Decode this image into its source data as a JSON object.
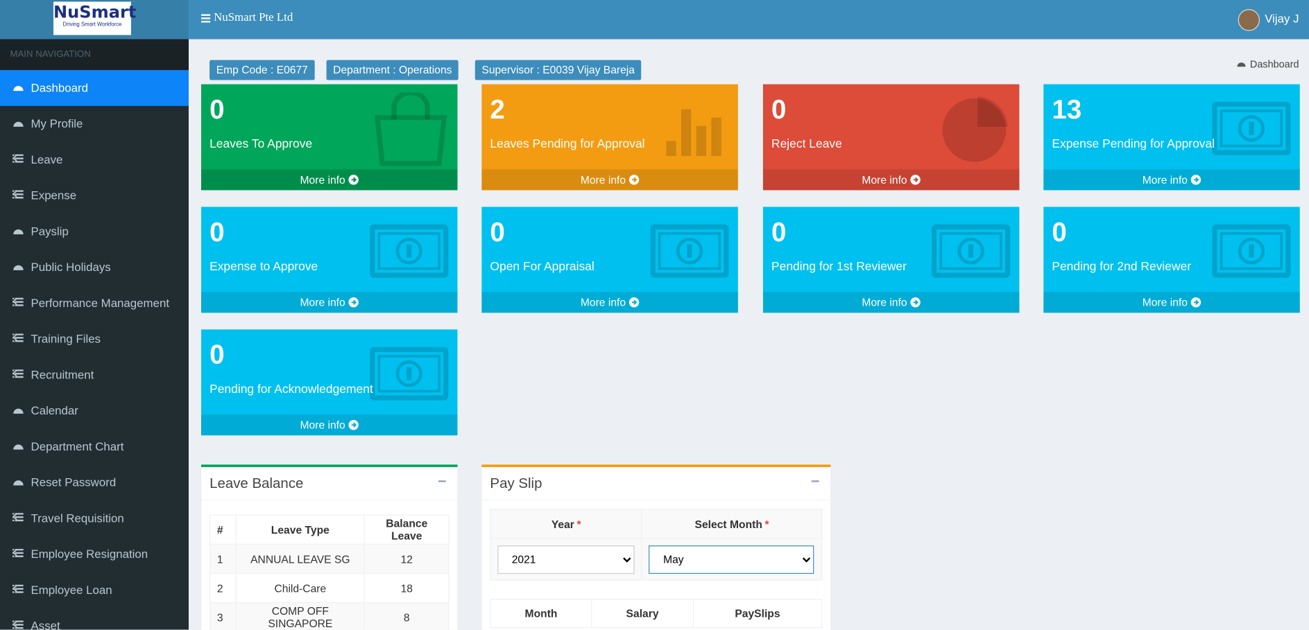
{
  "header": {
    "logo_title": "NuSmart",
    "logo_tagline": "Driving Smart Workforce",
    "brand": "NuSmart Pte Ltd",
    "user": "Vijay J"
  },
  "sidebar": {
    "heading": "MAIN NAVIGATION",
    "active": 0,
    "items": [
      {
        "label": "Dashboard",
        "icon": "dashboard",
        "submenu": false
      },
      {
        "label": "My Profile",
        "icon": "dashboard",
        "submenu": false
      },
      {
        "label": "Leave",
        "icon": "list",
        "submenu": true
      },
      {
        "label": "Expense",
        "icon": "list",
        "submenu": true
      },
      {
        "label": "Payslip",
        "icon": "dashboard",
        "submenu": false
      },
      {
        "label": "Public Holidays",
        "icon": "dashboard",
        "submenu": false
      },
      {
        "label": "Performance Management",
        "icon": "list",
        "submenu": true
      },
      {
        "label": "Training Files",
        "icon": "list",
        "submenu": true
      },
      {
        "label": "Recruitment",
        "icon": "list",
        "submenu": true
      },
      {
        "label": "Calendar",
        "icon": "dashboard",
        "submenu": false
      },
      {
        "label": "Department Chart",
        "icon": "dashboard",
        "submenu": false
      },
      {
        "label": "Reset Password",
        "icon": "dashboard",
        "submenu": false
      },
      {
        "label": "Travel Requisition",
        "icon": "list",
        "submenu": true
      },
      {
        "label": "Employee Resignation",
        "icon": "list",
        "submenu": true
      },
      {
        "label": "Employee Loan",
        "icon": "list",
        "submenu": true
      },
      {
        "label": "Asset",
        "icon": "list",
        "submenu": true
      }
    ]
  },
  "badges": [
    "Emp Code : E0677",
    "Department : Operations",
    "Supervisor : E0039 Vijay Bareja"
  ],
  "breadcrumb": "Dashboard",
  "more_info": "More info",
  "info_boxes": [
    {
      "value": 0,
      "label": "Leaves To Approve",
      "color": "green",
      "icon": "bag"
    },
    {
      "value": 2,
      "label": "Leaves Pending for Approval",
      "color": "orange",
      "icon": "bars"
    },
    {
      "value": 0,
      "label": "Reject Leave",
      "color": "red",
      "icon": "pie"
    },
    {
      "value": 13,
      "label": "Expense Pending for Approval",
      "color": "aqua",
      "icon": "money"
    },
    {
      "value": 0,
      "label": "Expense to Approve",
      "color": "aqua",
      "icon": "money"
    },
    {
      "value": 0,
      "label": "Open For Appraisal",
      "color": "aqua",
      "icon": "money"
    },
    {
      "value": 0,
      "label": "Pending for 1st Reviewer",
      "color": "aqua",
      "icon": "money"
    },
    {
      "value": 0,
      "label": "Pending for 2nd Reviewer",
      "color": "aqua",
      "icon": "money"
    },
    {
      "value": 0,
      "label": "Pending for Acknowledgement",
      "color": "aqua",
      "icon": "money"
    }
  ],
  "leave_balance": {
    "title": "Leave Balance",
    "columns": [
      "#",
      "Leave Type",
      "Balance Leave"
    ],
    "rows": [
      [
        1,
        "ANNUAL LEAVE SG",
        12
      ],
      [
        2,
        "Child-Care",
        18
      ],
      [
        3,
        "COMP OFF SINGAPORE",
        8
      ]
    ]
  },
  "payslip": {
    "title": "Pay Slip",
    "year_label": "Year",
    "month_label": "Select Month",
    "required_mark": "*",
    "year": "2021",
    "month": "May",
    "columns": [
      "Month",
      "Salary",
      "PaySlips"
    ]
  }
}
